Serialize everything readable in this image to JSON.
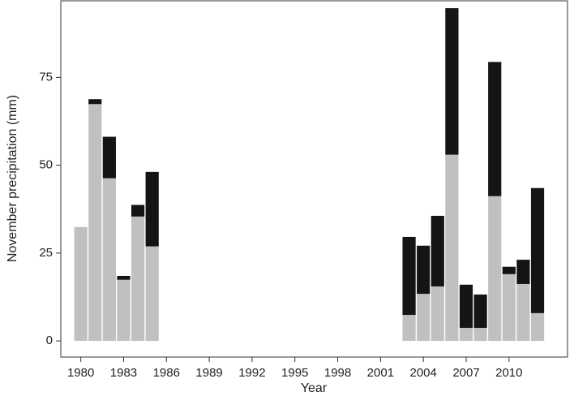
{
  "chart_data": {
    "type": "stacked_bar",
    "xlabel": "Year",
    "ylabel": "November precipitation (mm)",
    "x": [
      1980,
      1981,
      1982,
      1983,
      1984,
      1985,
      2003,
      2004,
      2005,
      2006,
      2007,
      2008,
      2009,
      2010,
      2011,
      2012
    ],
    "series": [
      {
        "color": "#c0c0c0",
        "values": [
          32.4,
          67.4,
          46.3,
          17.4,
          35.4,
          26.9,
          7.4,
          13.4,
          15.5,
          53,
          3.7,
          3.7,
          41.2,
          19,
          16.2,
          7.9
        ]
      },
      {
        "color": "#141414",
        "values": [
          0,
          1.4,
          11.8,
          1.1,
          3.3,
          21.2,
          22.2,
          13.7,
          20.1,
          41.7,
          12.3,
          9.5,
          38.2,
          2.1,
          6.9,
          35.6
        ]
      }
    ],
    "xlim": [
      1978.6,
      2014.1
    ],
    "xticks": [
      1980,
      1983,
      1986,
      1989,
      1992,
      1995,
      1998,
      2001,
      2004,
      2007,
      2010
    ],
    "ylim": [
      -4.6,
      96.8
    ],
    "yticks": [
      0,
      25,
      50,
      75
    ]
  }
}
